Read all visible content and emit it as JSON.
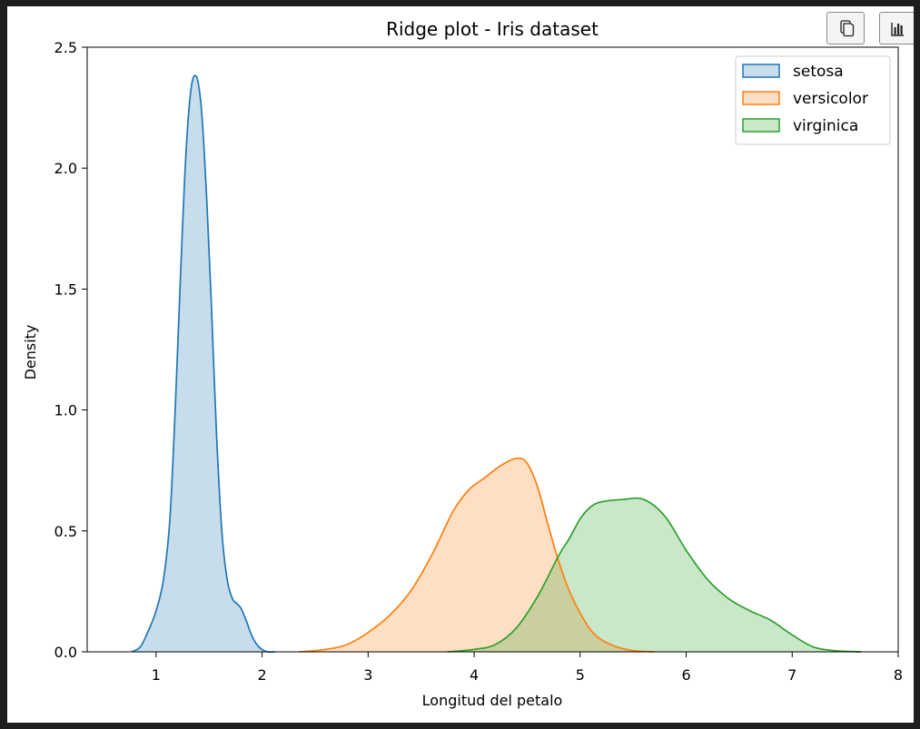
{
  "toolbar": {
    "copy_icon": "copy-icon",
    "chart_icon": "bar-chart-icon"
  },
  "chart_data": {
    "type": "area",
    "title": "Ridge plot - Iris dataset",
    "xlabel": "Longitud del petalo",
    "ylabel": "Density",
    "xlim": [
      0.35,
      8.0
    ],
    "ylim": [
      0,
      2.5
    ],
    "xticks": [
      1,
      2,
      3,
      4,
      5,
      6,
      7,
      8
    ],
    "xtick_labels": [
      "1",
      "2",
      "3",
      "4",
      "5",
      "6",
      "7",
      "8"
    ],
    "yticks": [
      0,
      0.5,
      1.0,
      1.5,
      2.0,
      2.5
    ],
    "ytick_labels": [
      "0.0",
      "0.5",
      "1.0",
      "1.5",
      "2.0",
      "2.5"
    ],
    "grid": false,
    "legend_position": "top-right",
    "series": [
      {
        "name": "setosa",
        "color": "#1f77b4",
        "x": [
          0.77,
          0.85,
          0.92,
          1.0,
          1.07,
          1.13,
          1.18,
          1.23,
          1.28,
          1.33,
          1.38,
          1.42,
          1.45,
          1.48,
          1.52,
          1.57,
          1.62,
          1.67,
          1.72,
          1.76,
          1.8,
          1.85,
          1.9,
          1.95,
          2.0,
          2.05,
          2.12
        ],
        "y": [
          0.0,
          0.02,
          0.08,
          0.17,
          0.3,
          0.55,
          1.0,
          1.55,
          2.05,
          2.33,
          2.38,
          2.28,
          2.1,
          1.85,
          1.45,
          0.9,
          0.5,
          0.3,
          0.22,
          0.2,
          0.18,
          0.13,
          0.07,
          0.03,
          0.01,
          0.0,
          0.0
        ]
      },
      {
        "name": "versicolor",
        "color": "#ff7f0e",
        "x": [
          2.35,
          2.6,
          2.8,
          3.0,
          3.2,
          3.4,
          3.6,
          3.8,
          3.95,
          4.1,
          4.25,
          4.4,
          4.5,
          4.6,
          4.7,
          4.8,
          4.9,
          5.0,
          5.1,
          5.2,
          5.35,
          5.5,
          5.7
        ],
        "y": [
          0.0,
          0.01,
          0.03,
          0.08,
          0.15,
          0.25,
          0.4,
          0.58,
          0.67,
          0.72,
          0.77,
          0.8,
          0.78,
          0.68,
          0.52,
          0.37,
          0.25,
          0.16,
          0.09,
          0.05,
          0.02,
          0.005,
          0.0
        ]
      },
      {
        "name": "virginica",
        "color": "#2ca02c",
        "x": [
          3.75,
          4.0,
          4.2,
          4.4,
          4.6,
          4.8,
          4.9,
          5.0,
          5.1,
          5.2,
          5.4,
          5.6,
          5.8,
          6.0,
          6.2,
          6.4,
          6.6,
          6.8,
          7.0,
          7.2,
          7.4,
          7.65
        ],
        "y": [
          0.0,
          0.01,
          0.03,
          0.1,
          0.23,
          0.4,
          0.47,
          0.55,
          0.6,
          0.62,
          0.63,
          0.63,
          0.56,
          0.42,
          0.3,
          0.22,
          0.17,
          0.13,
          0.07,
          0.02,
          0.005,
          0.0
        ]
      }
    ]
  }
}
